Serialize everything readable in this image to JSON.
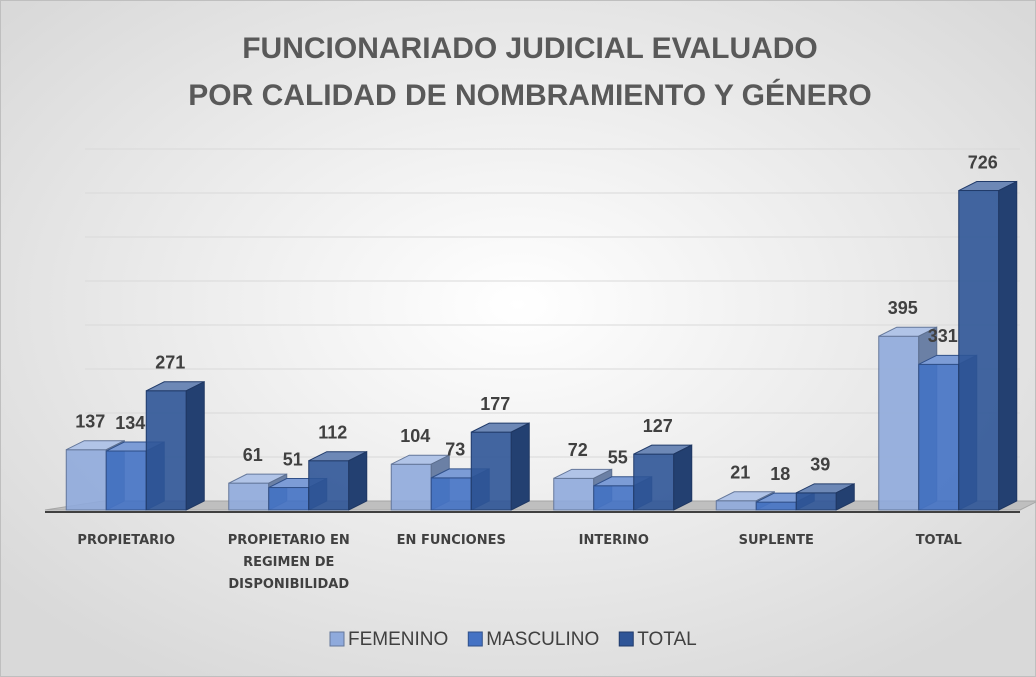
{
  "chart_data": {
    "type": "bar3d",
    "title": "FUNCIONARIADO JUDICIAL EVALUADO",
    "subtitle": "POR CALIDAD DE NOMBRAMIENTO Y GÉNERO",
    "categories": [
      "PROPIETARIO",
      "PROPIETARIO EN REGIMEN DE DISPONIBILIDAD",
      "EN FUNCIONES",
      "INTERINO",
      "SUPLENTE",
      "TOTAL"
    ],
    "series": [
      {
        "name": "FEMENINO",
        "color": "#8faadc",
        "values": [
          137,
          61,
          104,
          72,
          21,
          395
        ]
      },
      {
        "name": "MASCULINO",
        "color": "#4472c4",
        "values": [
          134,
          51,
          73,
          55,
          18,
          331
        ]
      },
      {
        "name": "TOTAL",
        "color": "#2f5597",
        "values": [
          271,
          112,
          177,
          127,
          39,
          726
        ]
      }
    ],
    "ylim": [
      0,
      800
    ],
    "yticks": [
      0,
      100,
      200,
      300,
      400,
      500,
      600,
      700,
      800
    ],
    "grid": true,
    "legend": "bottom"
  }
}
